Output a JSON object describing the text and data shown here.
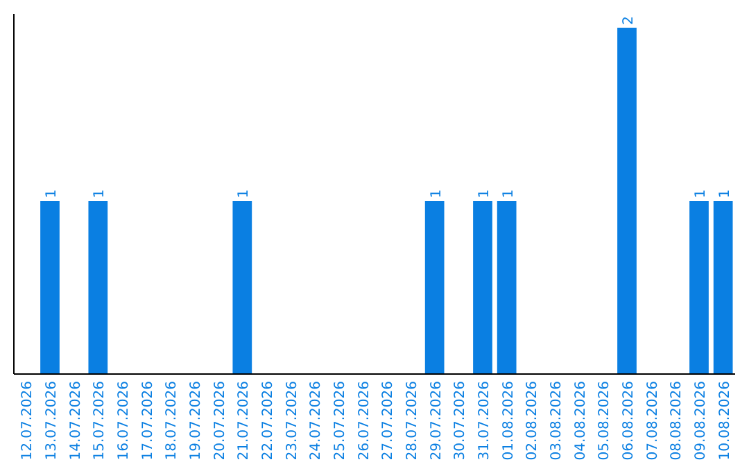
{
  "chart_data": {
    "type": "bar",
    "categories": [
      "12.07.2026",
      "13.07.2026",
      "14.07.2026",
      "15.07.2026",
      "16.07.2026",
      "17.07.2026",
      "18.07.2026",
      "19.07.2026",
      "20.07.2026",
      "21.07.2026",
      "22.07.2026",
      "23.07.2026",
      "24.07.2026",
      "25.07.2026",
      "26.07.2026",
      "27.07.2026",
      "28.07.2026",
      "29.07.2026",
      "30.07.2026",
      "31.07.2026",
      "01.08.2026",
      "02.08.2026",
      "03.08.2026",
      "04.08.2026",
      "05.08.2026",
      "06.08.2026",
      "07.08.2026",
      "08.08.2026",
      "09.08.2026",
      "10.08.2026"
    ],
    "values": [
      0,
      1,
      0,
      1,
      0,
      0,
      0,
      0,
      0,
      1,
      0,
      0,
      0,
      0,
      0,
      0,
      0,
      1,
      0,
      1,
      1,
      0,
      0,
      0,
      0,
      2,
      0,
      0,
      1,
      1
    ],
    "value_labels": [
      null,
      "1",
      null,
      "1",
      null,
      null,
      null,
      null,
      null,
      "1",
      null,
      null,
      null,
      null,
      null,
      null,
      null,
      "1",
      null,
      "1",
      "1",
      null,
      null,
      null,
      null,
      "2",
      null,
      null,
      "1",
      "1"
    ],
    "color": "#0a7fe2",
    "relative": false
  }
}
